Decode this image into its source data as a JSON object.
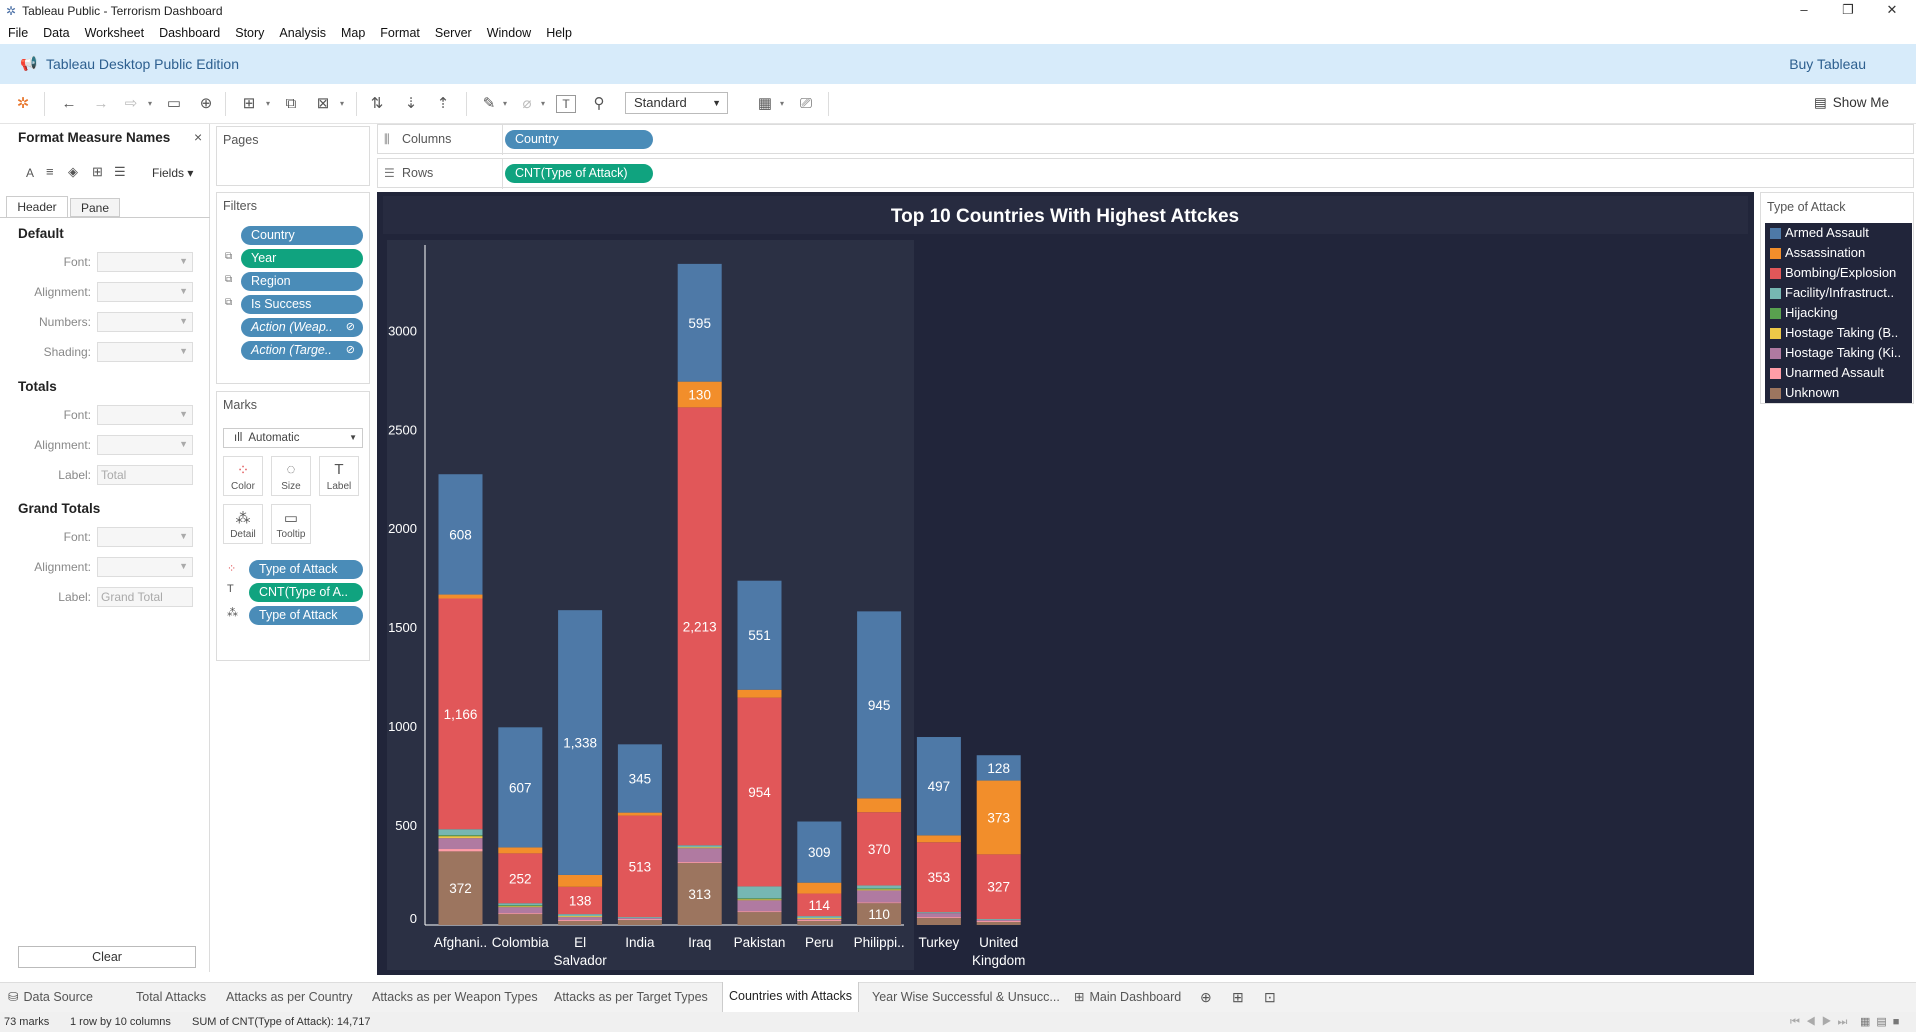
{
  "window": {
    "title": "Tableau Public - Terrorism Dashboard",
    "controls": [
      "–",
      "❐",
      "✕"
    ]
  },
  "menu": [
    "File",
    "Data",
    "Worksheet",
    "Dashboard",
    "Story",
    "Analysis",
    "Map",
    "Format",
    "Server",
    "Window",
    "Help"
  ],
  "brand": {
    "edition": "Tableau Desktop Public Edition",
    "buy": "Buy Tableau"
  },
  "toolbar": {
    "fit": "Standard",
    "show_me": "Show Me"
  },
  "format_pane": {
    "title": "Format Measure Names",
    "fields_label": "Fields ▾",
    "tabs": [
      "Header",
      "Pane"
    ],
    "default_heading": "Default",
    "default_rows": [
      "Font:",
      "Alignment:",
      "Numbers:",
      "Shading:"
    ],
    "totals_heading": "Totals",
    "totals_rows": [
      "Font:",
      "Alignment:",
      "Label:"
    ],
    "totals_label_value": "Total",
    "grand_heading": "Grand Totals",
    "grand_rows": [
      "Font:",
      "Alignment:",
      "Label:"
    ],
    "grand_label_value": "Grand Total",
    "clear": "Clear"
  },
  "pages": {
    "title": "Pages"
  },
  "filters": {
    "title": "Filters",
    "items": [
      "Country",
      "Year",
      "Region",
      "Is Success",
      "Action (Weap..",
      "Action (Targe.."
    ]
  },
  "marks": {
    "title": "Marks",
    "type": "Automatic",
    "cards": [
      "Color",
      "Size",
      "Label",
      "Detail",
      "Tooltip"
    ],
    "fields": [
      "Type of Attack",
      "CNT(Type of A..",
      "Type of Attack"
    ]
  },
  "shelves": {
    "columns_label": "Columns",
    "columns_pill": "Country",
    "rows_label": "Rows",
    "rows_pill": "CNT(Type of Attack)"
  },
  "legend": {
    "title": "Type of Attack",
    "items": [
      {
        "name": "Armed Assault",
        "color": "#4e79a7"
      },
      {
        "name": "Assassination",
        "color": "#f28e2b"
      },
      {
        "name": "Bombing/Explosion",
        "color": "#e15759"
      },
      {
        "name": "Facility/Infrastruct..",
        "color": "#76b7b2"
      },
      {
        "name": "Hijacking",
        "color": "#59a14f"
      },
      {
        "name": "Hostage Taking (B..",
        "color": "#edc948"
      },
      {
        "name": "Hostage Taking (Ki..",
        "color": "#b07aa1"
      },
      {
        "name": "Unarmed Assault",
        "color": "#ff9da7"
      },
      {
        "name": "Unknown",
        "color": "#9c755f"
      }
    ]
  },
  "chart_data": {
    "type": "bar",
    "stacked": true,
    "title": "Top 10 Countries With Highest Attckes",
    "categories": [
      "Afghani..",
      "Colombia",
      "El Salvador",
      "India",
      "Iraq",
      "Pakistan",
      "Peru",
      "Philippi..",
      "Turkey",
      "United Kingdom"
    ],
    "ylim": [
      0,
      3300
    ],
    "yticks": [
      0,
      500,
      1000,
      1500,
      2000,
      2500,
      3000
    ],
    "series": [
      {
        "name": "Unknown",
        "values": [
          372,
          55,
          20,
          25,
          313,
          65,
          20,
          110,
          35,
          15
        ]
      },
      {
        "name": "Unarmed Assault",
        "values": [
          12,
          5,
          5,
          5,
          5,
          5,
          5,
          5,
          5,
          5
        ]
      },
      {
        "name": "Hostage Taking (Ki..",
        "values": [
          55,
          30,
          15,
          5,
          70,
          55,
          5,
          60,
          20,
          5
        ]
      },
      {
        "name": "Hostage Taking (B..",
        "values": [
          10,
          5,
          5,
          0,
          5,
          5,
          5,
          5,
          0,
          0
        ]
      },
      {
        "name": "Hijacking",
        "values": [
          5,
          5,
          0,
          0,
          0,
          5,
          0,
          5,
          0,
          0
        ]
      },
      {
        "name": "Facility/Infrastruct..",
        "values": [
          30,
          10,
          10,
          5,
          10,
          60,
          10,
          15,
          5,
          5
        ]
      },
      {
        "name": "Bombing/Explosion",
        "values": [
          1166,
          252,
          138,
          513,
          2213,
          954,
          114,
          370,
          353,
          327
        ]
      },
      {
        "name": "Assassination",
        "values": [
          20,
          30,
          60,
          15,
          130,
          40,
          55,
          70,
          35,
          373
        ]
      },
      {
        "name": "Armed Assault",
        "values": [
          608,
          607,
          1338,
          345,
          595,
          551,
          309,
          945,
          497,
          128
        ]
      }
    ],
    "labeled": {
      "Unknown": [
        0,
        4,
        7
      ],
      "Bombing/Explosion": [
        0,
        1,
        2,
        3,
        4,
        5,
        6,
        7,
        8,
        9
      ],
      "Assassination": [
        4,
        9
      ],
      "Armed Assault": [
        0,
        1,
        2,
        3,
        4,
        5,
        6,
        7,
        8,
        9
      ]
    },
    "value_labels": {
      "Unknown": [
        "372",
        "",
        "",
        "",
        "313",
        "",
        "",
        "110",
        "",
        ""
      ],
      "Bombing/Explosion": [
        "1,166",
        "252",
        "138",
        "513",
        "2,213",
        "954",
        "114",
        "370",
        "353",
        "327"
      ],
      "Assassination": [
        "",
        "",
        "",
        "",
        "130",
        "",
        "",
        "",
        "",
        "373"
      ],
      "Armed Assault": [
        "608",
        "607",
        "1,338",
        "345",
        "595",
        "551",
        "309",
        "945",
        "497",
        "128"
      ]
    }
  },
  "sheet_tabs": [
    "Data Source",
    "Total Attacks",
    "Attacks as per Country",
    "Attacks as per Weapon Types",
    "Attacks as per Target Types",
    "Countries with Attacks",
    "Year Wise Successful & Unsucc...",
    "Main Dashboard"
  ],
  "active_tab": "Countries with Attacks",
  "status": {
    "marks": "73 marks",
    "layout": "1 row by 10 columns",
    "sum": "SUM of CNT(Type of Attack): 14,717"
  }
}
